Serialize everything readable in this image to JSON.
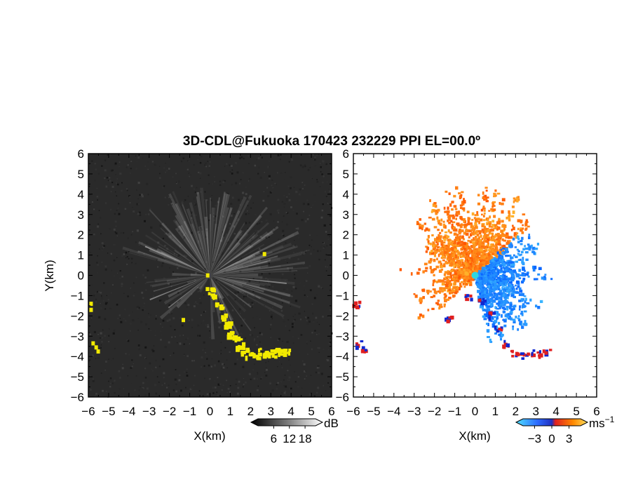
{
  "figure": {
    "title": "3D-CDL@Fukuoka 170423 232229 PPI EL=00.0º"
  },
  "chart_data": [
    {
      "type": "heatmap",
      "name": "reflectivity-panel",
      "xlabel": "X(km)",
      "ylabel": "Y(km)",
      "xlim": [
        -6,
        6
      ],
      "ylim": [
        -6,
        6
      ],
      "x_ticks": [
        "−6",
        "−5",
        "−4",
        "−3",
        "−2",
        "−1",
        "0",
        "1",
        "2",
        "3",
        "4",
        "5",
        "6"
      ],
      "y_ticks": [
        "6",
        "5",
        "4",
        "3",
        "2",
        "1",
        "0",
        "−1",
        "−2",
        "−3",
        "−4",
        "−5",
        "−6"
      ],
      "colorbar": {
        "unit": "dB",
        "tick_labels": [
          "6",
          "12",
          "18"
        ],
        "tick_values": [
          6,
          12,
          18
        ],
        "range": [
          0,
          22
        ]
      },
      "colors": {
        "background": "#2a2a2a",
        "rays": "#d8d8d8",
        "flag": "#f2ea00"
      }
    },
    {
      "type": "heatmap",
      "name": "doppler-velocity-panel",
      "xlabel": "X(km)",
      "ylabel": "",
      "xlim": [
        -6,
        6
      ],
      "ylim": [
        -6,
        6
      ],
      "x_ticks": [
        "−6",
        "−5",
        "−4",
        "−3",
        "−2",
        "−1",
        "0",
        "1",
        "2",
        "3",
        "4",
        "5",
        "6"
      ],
      "y_ticks": [
        "6",
        "5",
        "4",
        "3",
        "2",
        "1",
        "0",
        "−1",
        "−2",
        "−3",
        "−4",
        "−5",
        "−6"
      ],
      "colorbar": {
        "unit": "ms",
        "unit_exp": "−1",
        "tick_labels": [
          "−3",
          "0",
          "3"
        ],
        "tick_values": [
          -3,
          0,
          3
        ],
        "range": [
          -5,
          5
        ]
      },
      "colors": {
        "away": "#ff9a00",
        "toward": "#1e90ff",
        "edge_red": "#e02020",
        "edge_blue": "#1028d0"
      }
    }
  ]
}
